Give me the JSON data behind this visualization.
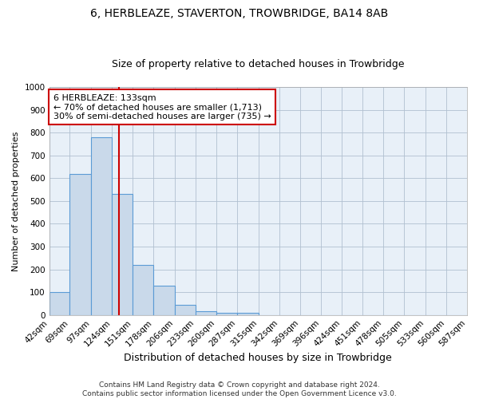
{
  "title1": "6, HERBLEAZE, STAVERTON, TROWBRIDGE, BA14 8AB",
  "title2": "Size of property relative to detached houses in Trowbridge",
  "xlabel": "Distribution of detached houses by size in Trowbridge",
  "ylabel": "Number of detached properties",
  "bin_edges": [
    42,
    69,
    97,
    124,
    151,
    178,
    206,
    233,
    260,
    287,
    315,
    342,
    369,
    396,
    424,
    451,
    478,
    505,
    533,
    560,
    587
  ],
  "bar_heights": [
    100,
    620,
    780,
    530,
    220,
    130,
    45,
    15,
    10,
    10,
    0,
    0,
    0,
    0,
    0,
    0,
    0,
    0,
    0,
    0
  ],
  "bar_color": "#c9d9ea",
  "bar_edge_color": "#5b9bd5",
  "property_size": 133,
  "vline_color": "#cc0000",
  "annotation_line1": "6 HERBLEAZE: 133sqm",
  "annotation_line2": "← 70% of detached houses are smaller (1,713)",
  "annotation_line3": "30% of semi-detached houses are larger (735) →",
  "annotation_box_color": "#ffffff",
  "annotation_box_edge_color": "#cc0000",
  "ylim": [
    0,
    1000
  ],
  "yticks": [
    0,
    100,
    200,
    300,
    400,
    500,
    600,
    700,
    800,
    900,
    1000
  ],
  "footer_text": "Contains HM Land Registry data © Crown copyright and database right 2024.\nContains public sector information licensed under the Open Government Licence v3.0.",
  "plot_bg_color": "#e8f0f8",
  "background_color": "#ffffff",
  "grid_color": "#b0c0d0",
  "title1_fontsize": 10,
  "title2_fontsize": 9,
  "xlabel_fontsize": 9,
  "ylabel_fontsize": 8,
  "tick_fontsize": 7.5,
  "annotation_fontsize": 8,
  "footer_fontsize": 6.5
}
